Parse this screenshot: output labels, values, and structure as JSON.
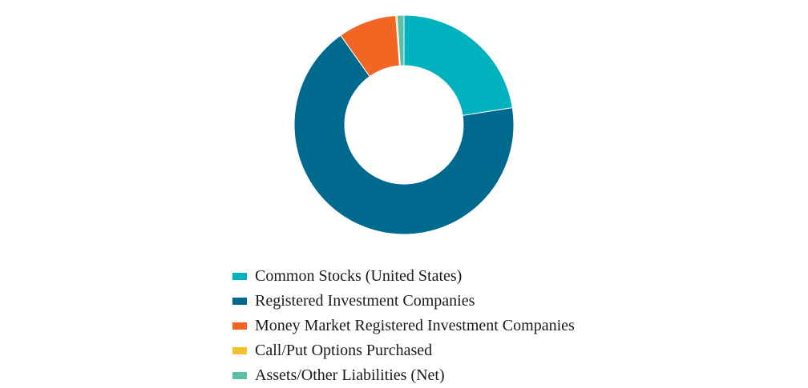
{
  "chart_data": {
    "type": "pie",
    "style": "donut",
    "title": "",
    "legend_position": "bottom",
    "slices": [
      {
        "label": "Common Stocks (United States)",
        "value": 22.5,
        "color": "#00b2bd"
      },
      {
        "label": "Registered Investment Companies",
        "value": 67.7,
        "color": "#006a8e"
      },
      {
        "label": "Money Market Registered Investment Companies",
        "value": 8.6,
        "color": "#f26522"
      },
      {
        "label": "Call/Put Options Purchased",
        "value": 0.2,
        "color": "#f2c12e"
      },
      {
        "label": "Assets/Other Liabilities (Net)",
        "value": 1.0,
        "color": "#5bbfa8"
      }
    ]
  }
}
